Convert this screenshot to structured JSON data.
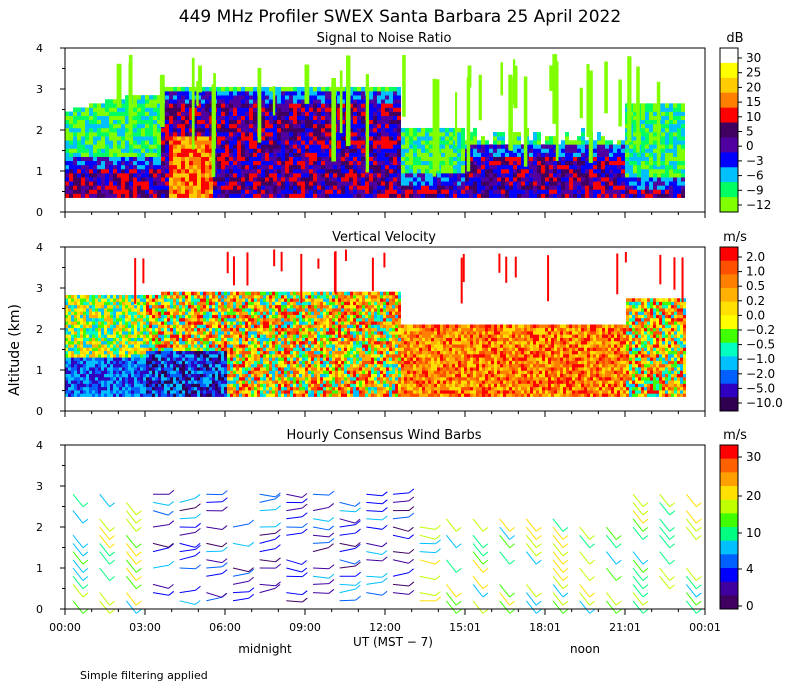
{
  "title": "449 MHz Profiler SWEX Santa Barbara 25 April 2022",
  "footnote": "Simple filtering applied",
  "shared_axes": {
    "ylabel": "Altitude (km)",
    "xlabel": "UT  (MST − 7)",
    "x_ticks": [
      "00:00",
      "03:00",
      "06:00",
      "09:00",
      "12:00",
      "15:01",
      "18:01",
      "21:01",
      "00:01"
    ],
    "x_minor_ticks_count": 27,
    "local_time_markers": [
      {
        "label": "midnight",
        "time_ut": 7
      },
      {
        "label": "noon",
        "time_ut": 19
      }
    ]
  },
  "chart_data": [
    {
      "type": "heatmap",
      "title": "Signal to Noise Ratio",
      "xlabel": "UT  (MST − 7)",
      "ylabel": "Altitude (km)",
      "xlim": [
        0,
        24
      ],
      "ylim": [
        0,
        4
      ],
      "y_ticks": [
        "0",
        "1",
        "2",
        "3",
        "4"
      ],
      "colorbar": {
        "unit": "dB",
        "labels": [
          "30",
          "25",
          "20",
          "15",
          "10",
          "5",
          "0",
          "−3",
          "−6",
          "−9",
          "−12"
        ],
        "colors": [
          "#ffffff",
          "#ffff00",
          "#ffcc00",
          "#ff8000",
          "#ff0000",
          "#400060",
          "#5000a0",
          "#0000ff",
          "#00c0ff",
          "#00ff60",
          "#80ff00"
        ]
      }
    },
    {
      "type": "heatmap",
      "title": "Vertical Velocity",
      "xlabel": "UT  (MST − 7)",
      "ylabel": "Altitude (km)",
      "xlim": [
        0,
        24
      ],
      "ylim": [
        0,
        4
      ],
      "y_ticks": [
        "0",
        "1",
        "2",
        "3",
        "4"
      ],
      "colorbar": {
        "unit": "m/s",
        "labels": [
          "2.0",
          "1.0",
          "0.5",
          "0.2",
          "0.0",
          "−0.2",
          "−0.5",
          "−1.0",
          "−2.0",
          "−5.0",
          "−10.0"
        ],
        "colors": [
          "#ff0000",
          "#ff5000",
          "#ff8000",
          "#ffb000",
          "#ffe000",
          "#ffff00",
          "#40ff00",
          "#00ffc0",
          "#00c0ff",
          "#0060ff",
          "#3000c0",
          "#300050"
        ]
      }
    },
    {
      "type": "wind_barbs",
      "title": "Hourly Consensus Wind Barbs",
      "xlabel": "UT  (MST − 7)",
      "ylabel": "Altitude (km)",
      "xlim": [
        0,
        24
      ],
      "ylim": [
        0,
        4
      ],
      "y_ticks": [
        "0",
        "1",
        "2",
        "3",
        "4"
      ],
      "colorbar": {
        "unit": "m/s",
        "labels": [
          "30",
          "20",
          "10",
          "4",
          "0"
        ],
        "colors": [
          "#ff0000",
          "#ff6000",
          "#ffa000",
          "#ffe000",
          "#c0ff00",
          "#40ff00",
          "#00ff80",
          "#00c0ff",
          "#0060ff",
          "#0000ff",
          "#4000a0",
          "#400060"
        ]
      }
    }
  ]
}
